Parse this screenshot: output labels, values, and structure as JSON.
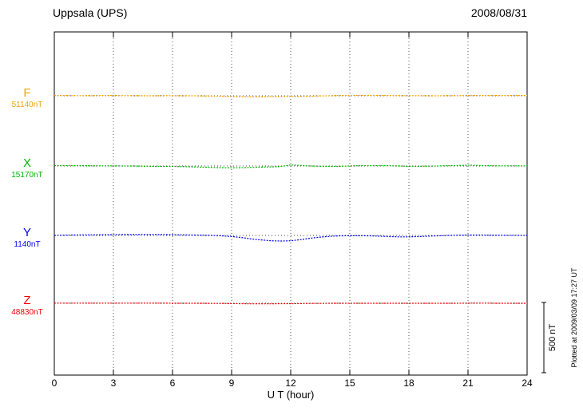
{
  "header": {
    "station": "Uppsala (UPS)",
    "date": "2008/08/31"
  },
  "xaxis": {
    "label": "U T (hour)",
    "ticks": [
      0,
      3,
      6,
      9,
      12,
      15,
      18,
      21,
      24
    ],
    "range": [
      0,
      24
    ]
  },
  "scale_bar": {
    "label": "500 nT",
    "value_nT": 500
  },
  "plot_note": "Plotted at 2009/03/09 17:27 UT",
  "components": [
    {
      "id": "F",
      "label": "F",
      "baseline_label": "51140nT",
      "color": "#f5a200"
    },
    {
      "id": "X",
      "label": "X",
      "baseline_label": "15170nT",
      "color": "#00b400"
    },
    {
      "id": "Y",
      "label": "Y",
      "baseline_label": "1140nT",
      "color": "#0000ee"
    },
    {
      "id": "Z",
      "label": "Z",
      "baseline_label": "48830nT",
      "color": "#ee0000"
    }
  ],
  "chart_data": {
    "type": "line",
    "title": "Uppsala (UPS) magnetogram 2008/08/31",
    "xlabel": "U T (hour)",
    "x_range": [
      0,
      24
    ],
    "x_step_hours": 0.5,
    "grid": "dotted vertical every 3 h, dotted horizontal baseline per trace",
    "scale_bar_nT": 500,
    "series": [
      {
        "name": "F",
        "baseline_nT": 51140,
        "color": "#f5a200",
        "offsets_nT": [
          2,
          2,
          1,
          1,
          1,
          2,
          2,
          1,
          1,
          0,
          0,
          1,
          1,
          0,
          0,
          -1,
          -2,
          -3,
          -5,
          -6,
          -8,
          -8,
          -6,
          -5,
          -4,
          -5,
          -3,
          -1,
          0,
          2,
          3,
          3,
          3,
          2,
          2,
          1,
          1,
          1,
          0,
          0,
          1,
          1,
          2,
          2,
          2,
          2,
          2,
          2,
          2
        ]
      },
      {
        "name": "X",
        "baseline_nT": 15170,
        "color": "#00b400",
        "offsets_nT": [
          3,
          3,
          2,
          2,
          1,
          1,
          1,
          0,
          0,
          -1,
          -2,
          -3,
          -3,
          -4,
          -6,
          -8,
          -10,
          -12,
          -13,
          -12,
          -10,
          -8,
          -6,
          -4,
          8,
          4,
          0,
          -2,
          -3,
          -2,
          0,
          2,
          3,
          3,
          2,
          0,
          -2,
          -2,
          -1,
          0,
          2,
          4,
          6,
          4,
          2,
          1,
          1,
          1,
          1
        ]
      },
      {
        "name": "Y",
        "baseline_nT": 1140,
        "color": "#0000ee",
        "offsets_nT": [
          0,
          2,
          3,
          4,
          4,
          5,
          5,
          6,
          6,
          7,
          7,
          6,
          5,
          4,
          3,
          2,
          0,
          -3,
          -8,
          -15,
          -25,
          -32,
          -38,
          -40,
          -38,
          -30,
          -20,
          -12,
          -6,
          -3,
          -2,
          -2,
          -3,
          -5,
          -8,
          -10,
          -10,
          -8,
          -5,
          -2,
          0,
          2,
          3,
          3,
          2,
          2,
          1,
          1,
          0
        ]
      },
      {
        "name": "Z",
        "baseline_nT": 48830,
        "color": "#ee0000",
        "offsets_nT": [
          1,
          1,
          1,
          1,
          1,
          1,
          1,
          1,
          1,
          1,
          1,
          1,
          0,
          0,
          0,
          0,
          -1,
          -1,
          -2,
          -3,
          -4,
          -4,
          -4,
          -3,
          -3,
          -2,
          -1,
          -1,
          0,
          0,
          0,
          0,
          0,
          0,
          0,
          0,
          0,
          0,
          0,
          0,
          0,
          0,
          1,
          1,
          1,
          0,
          0,
          0,
          0
        ]
      }
    ]
  }
}
